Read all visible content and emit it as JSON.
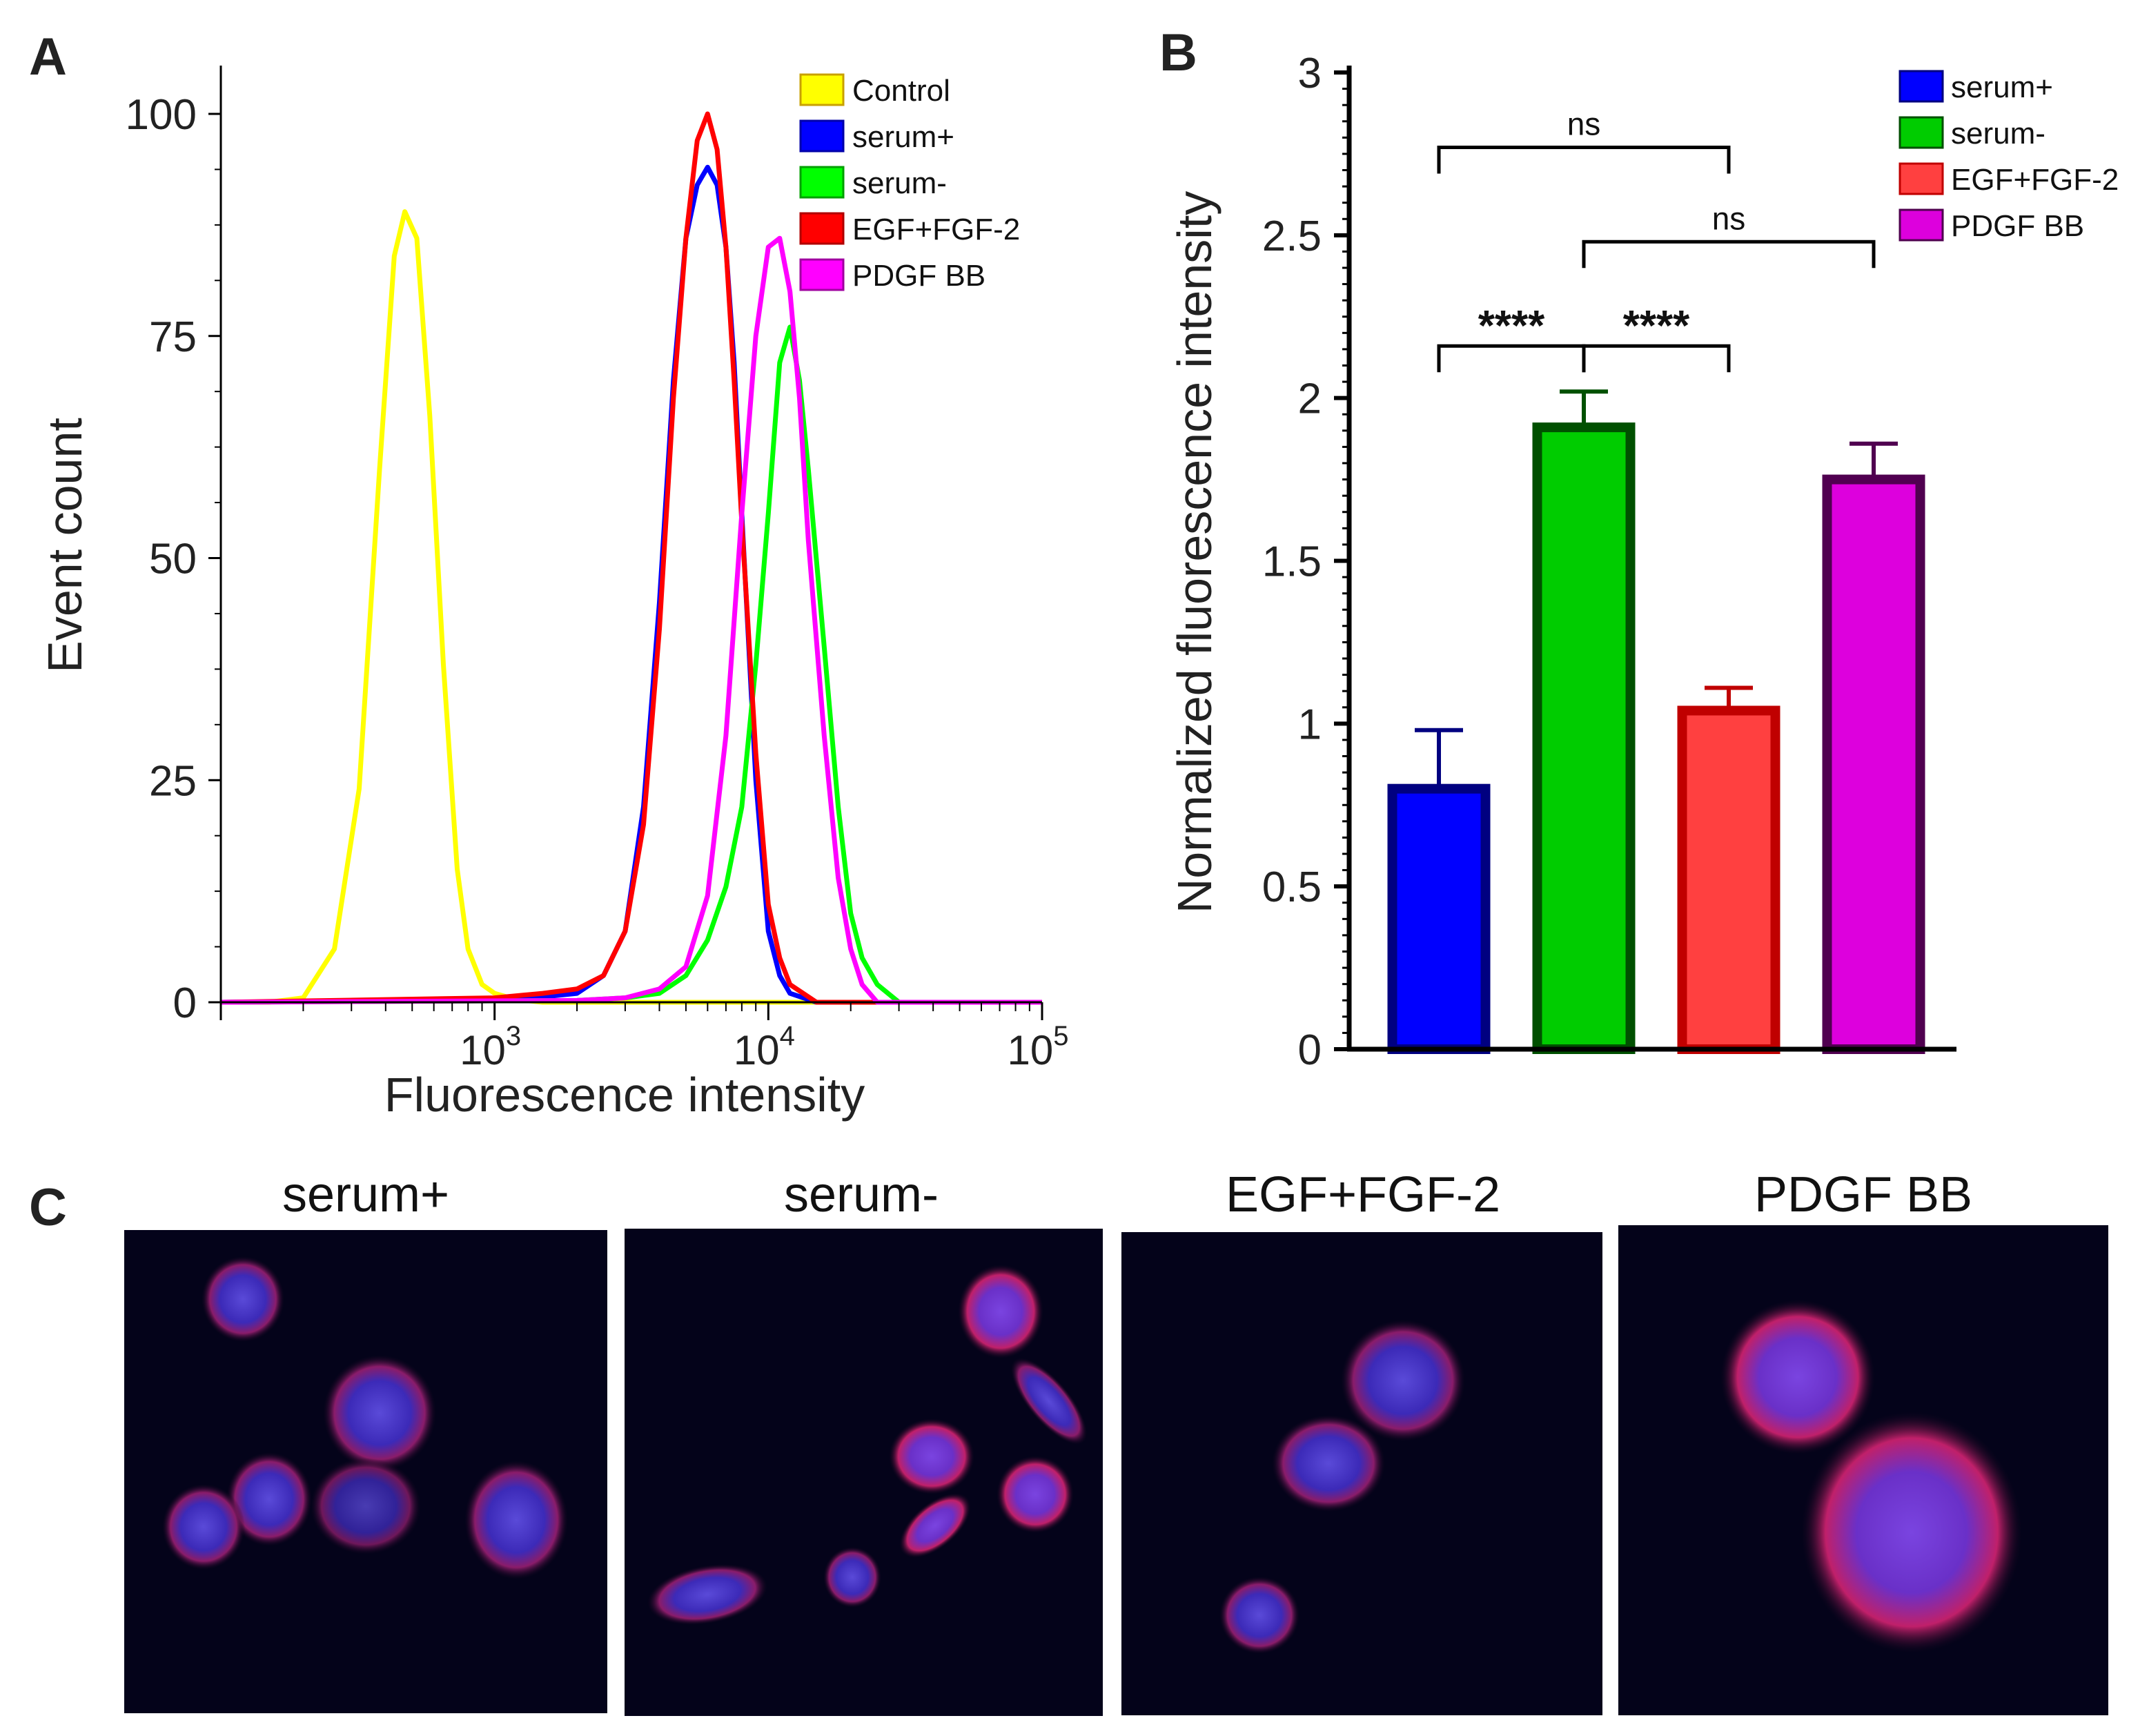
{
  "panels": {
    "a_label": "A",
    "b_label": "B",
    "c_label": "C"
  },
  "chart_data": [
    {
      "type": "line",
      "panel": "A",
      "xlabel": "Fluorescence intensity",
      "ylabel": "Event count",
      "x_scale": "log",
      "xlim": [
        100,
        100000
      ],
      "ylim": [
        0,
        100
      ],
      "y_ticks": [
        "0",
        "25",
        "50",
        "75",
        "100"
      ],
      "x_tick_labels": [
        {
          "base": "10",
          "exp": "3",
          "value": 1000
        },
        {
          "base": "10",
          "exp": "4",
          "value": 10000
        },
        {
          "base": "10",
          "exp": "5",
          "value": 100000
        }
      ],
      "legend": "top-right",
      "series": [
        {
          "name": "Control",
          "color": "#ffff00",
          "edge": "#c8a000",
          "x": [
            100,
            150,
            200,
            260,
            320,
            380,
            430,
            470,
            520,
            580,
            650,
            730,
            800,
            900,
            1000,
            1200,
            1500,
            3000,
            100000
          ],
          "y": [
            0,
            0,
            0.5,
            6,
            24,
            60,
            84,
            89,
            86,
            66,
            38,
            15,
            6,
            2,
            1,
            0.3,
            0,
            0,
            0
          ]
        },
        {
          "name": "serum+",
          "color": "#0000ff",
          "edge": "#0000aa",
          "x": [
            100,
            1000,
            1500,
            2000,
            2500,
            3000,
            3500,
            4000,
            4500,
            5000,
            5500,
            6000,
            6500,
            7000,
            7500,
            8000,
            9000,
            10000,
            11000,
            12000,
            15000,
            100000
          ],
          "y": [
            0,
            0.3,
            0.6,
            1,
            3,
            8,
            22,
            45,
            70,
            86,
            92,
            94,
            92,
            85,
            72,
            55,
            25,
            8,
            3,
            1,
            0,
            0
          ]
        },
        {
          "name": "serum-",
          "color": "#00ff00",
          "edge": "#00a000",
          "x": [
            100,
            2000,
            3000,
            4000,
            5000,
            6000,
            7000,
            8000,
            9000,
            10000,
            11000,
            12000,
            13000,
            14000,
            16000,
            18000,
            20000,
            22000,
            25000,
            30000,
            100000
          ],
          "y": [
            0,
            0.2,
            0.5,
            1,
            3,
            7,
            13,
            22,
            38,
            55,
            72,
            76,
            70,
            60,
            40,
            22,
            10,
            5,
            2,
            0,
            0
          ]
        },
        {
          "name": "EGF+FGF-2",
          "color": "#ff0000",
          "edge": "#b00000",
          "x": [
            100,
            1000,
            1500,
            2000,
            2500,
            3000,
            3500,
            4000,
            4500,
            5000,
            5500,
            6000,
            6500,
            7000,
            7500,
            8000,
            9000,
            10000,
            11000,
            12000,
            15000,
            100000
          ],
          "y": [
            0,
            0.5,
            1,
            1.5,
            3,
            8,
            20,
            42,
            68,
            86,
            97,
            100,
            96,
            85,
            70,
            54,
            28,
            11,
            5,
            2,
            0,
            0
          ]
        },
        {
          "name": "PDGF BB",
          "color": "#ff00ff",
          "edge": "#a000a0",
          "x": [
            100,
            2000,
            3000,
            4000,
            5000,
            6000,
            7000,
            8000,
            9000,
            10000,
            11000,
            12000,
            13000,
            14000,
            16000,
            18000,
            20000,
            22000,
            25000,
            100000
          ],
          "y": [
            0,
            0.2,
            0.5,
            1.5,
            4,
            12,
            30,
            55,
            75,
            85,
            86,
            80,
            68,
            52,
            30,
            14,
            6,
            2,
            0,
            0
          ]
        }
      ]
    },
    {
      "type": "bar",
      "panel": "B",
      "ylabel": "Normalized fluorescence intensity",
      "ylim": [
        0,
        3
      ],
      "y_ticks": [
        "0",
        "0.5",
        "1",
        "1.5",
        "2",
        "2.5",
        "3"
      ],
      "categories": [
        "serum+",
        "serum-",
        "EGF+FGF-2",
        "PDGF BB"
      ],
      "values": [
        0.8,
        1.91,
        1.04,
        1.75
      ],
      "errors": [
        0.18,
        0.11,
        0.07,
        0.11
      ],
      "fill_colors": [
        "#0000ff",
        "#00cc00",
        "#ff4040",
        "#dd00dd"
      ],
      "edge_colors": [
        "#000080",
        "#005000",
        "#c00000",
        "#500050"
      ],
      "legend": "top-right",
      "significance": [
        {
          "from": 0,
          "to": 1,
          "label": "****",
          "y": 2.16
        },
        {
          "from": 1,
          "to": 2,
          "label": "****",
          "y": 2.16
        },
        {
          "from": 0,
          "to": 2,
          "label": "ns",
          "y": 2.77
        },
        {
          "from": 1,
          "to": 3,
          "label": "ns",
          "y": 2.48
        }
      ]
    }
  ],
  "microscopy": {
    "titles": [
      "serum+",
      "serum-",
      "EGF+FGF-2",
      "PDGF BB"
    ]
  }
}
